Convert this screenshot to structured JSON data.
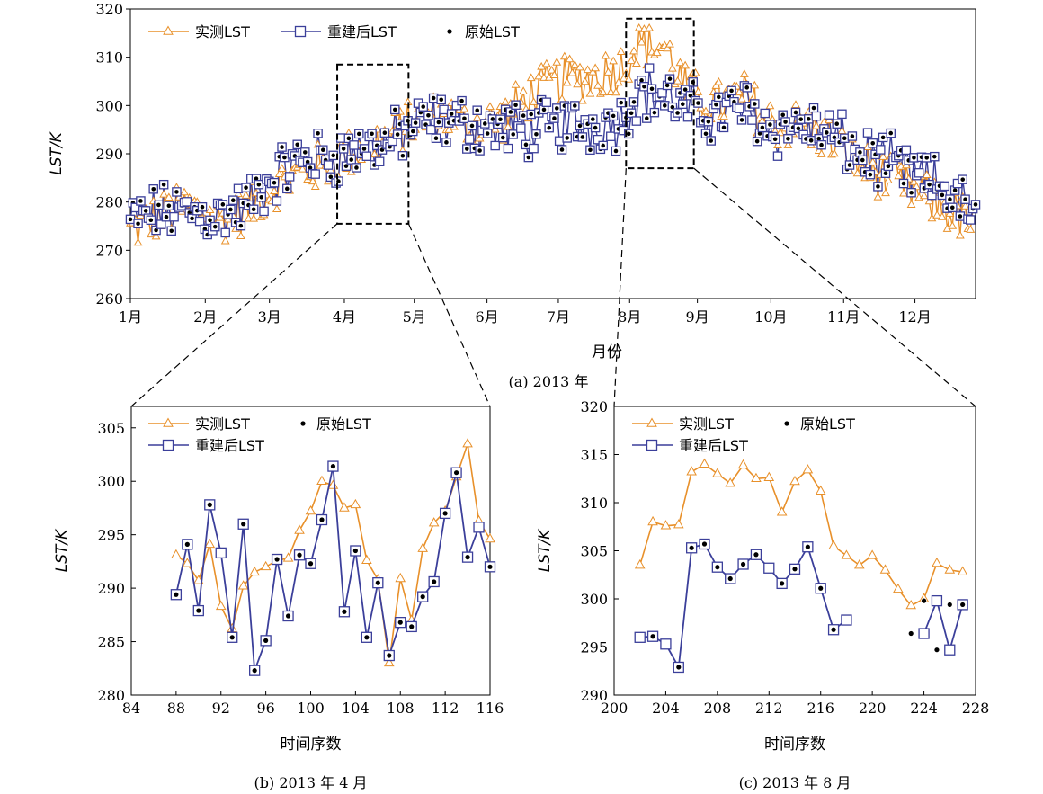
{
  "colors": {
    "measured": "#e8902a",
    "rebuilt": "#3b3f9a",
    "original": "#000000",
    "zoom_box": "#000000"
  },
  "chart_data": [
    {
      "id": "a",
      "type": "line",
      "caption": "(a) 2013 年",
      "xlabel": "月份",
      "ylabel": "LST/K",
      "ylim": [
        260,
        320
      ],
      "yticks": [
        260,
        270,
        280,
        290,
        300,
        310,
        320
      ],
      "xticks": [
        "1月",
        "2月",
        "3月",
        "4月",
        "5月",
        "6月",
        "7月",
        "8月",
        "9月",
        "10月",
        "11月",
        "12月"
      ],
      "xlim_month": [
        1,
        12.85
      ],
      "legend": [
        {
          "key": "measured",
          "label": "实测LST"
        },
        {
          "key": "rebuilt",
          "label": "重建后LST"
        },
        {
          "key": "original",
          "label": "原始LST"
        }
      ],
      "zoom_boxes": [
        {
          "x_month": [
            3.9,
            4.9
          ],
          "y": [
            275.5,
            308.5
          ]
        },
        {
          "x_month": [
            7.95,
            8.9
          ],
          "y": [
            287,
            318
          ]
        }
      ],
      "measured_anchors": [
        [
          1.0,
          274
        ],
        [
          1.4,
          277
        ],
        [
          1.8,
          279
        ],
        [
          2.2,
          276
        ],
        [
          2.6,
          278
        ],
        [
          3.0,
          283
        ],
        [
          3.4,
          286
        ],
        [
          3.8,
          288
        ],
        [
          4.2,
          291
        ],
        [
          4.6,
          293
        ],
        [
          5.0,
          297
        ],
        [
          5.4,
          298
        ],
        [
          5.8,
          296
        ],
        [
          6.2,
          297
        ],
        [
          6.6,
          302
        ],
        [
          7.0,
          305
        ],
        [
          7.5,
          306
        ],
        [
          7.9,
          308
        ],
        [
          8.1,
          313
        ],
        [
          8.5,
          312
        ],
        [
          8.8,
          303
        ],
        [
          9.2,
          300
        ],
        [
          9.6,
          302
        ],
        [
          10.0,
          296
        ],
        [
          10.4,
          296
        ],
        [
          10.8,
          293
        ],
        [
          11.2,
          288
        ],
        [
          11.6,
          285
        ],
        [
          12.0,
          282
        ],
        [
          12.4,
          279
        ],
        [
          12.85,
          275
        ]
      ],
      "rebuilt_anchors": [
        [
          1.0,
          276
        ],
        [
          1.4,
          278
        ],
        [
          1.8,
          278
        ],
        [
          2.2,
          277
        ],
        [
          2.6,
          279
        ],
        [
          3.0,
          285
        ],
        [
          3.4,
          289
        ],
        [
          3.8,
          289
        ],
        [
          4.2,
          291
        ],
        [
          4.6,
          292
        ],
        [
          5.0,
          296
        ],
        [
          5.4,
          297
        ],
        [
          5.8,
          296
        ],
        [
          6.2,
          295
        ],
        [
          6.6,
          295
        ],
        [
          7.0,
          296
        ],
        [
          7.5,
          296
        ],
        [
          7.9,
          297
        ],
        [
          8.1,
          303
        ],
        [
          8.5,
          302
        ],
        [
          8.8,
          299
        ],
        [
          9.2,
          298
        ],
        [
          9.6,
          300
        ],
        [
          10.0,
          295
        ],
        [
          10.4,
          296
        ],
        [
          10.8,
          294
        ],
        [
          11.2,
          290
        ],
        [
          11.6,
          288
        ],
        [
          12.0,
          285
        ],
        [
          12.4,
          283
        ],
        [
          12.85,
          277
        ]
      ]
    },
    {
      "id": "b",
      "type": "line",
      "caption": "(b) 2013 年 4 月",
      "xlabel": "时间序数",
      "ylabel": "LST/K",
      "xlim": [
        84,
        116
      ],
      "ylim": [
        280,
        307
      ],
      "xticks": [
        84,
        88,
        92,
        96,
        100,
        104,
        108,
        112,
        116
      ],
      "yticks": [
        280,
        285,
        290,
        295,
        300,
        305
      ],
      "legend": [
        {
          "key": "measured",
          "label": "实测LST"
        },
        {
          "key": "original",
          "label": "原始LST"
        },
        {
          "key": "rebuilt",
          "label": "重建后LST"
        }
      ],
      "series": [
        {
          "name": "实测LST",
          "key": "measured",
          "x": [
            88,
            89,
            90,
            91,
            92,
            93,
            94,
            95,
            96,
            97,
            98,
            99,
            100,
            101,
            102,
            103,
            104,
            105,
            106,
            107,
            108,
            109,
            110,
            111,
            112,
            113,
            114,
            115,
            116
          ],
          "y": [
            293.1,
            292.3,
            290.7,
            294.1,
            288.3,
            286.2,
            290.2,
            291.5,
            292.0,
            292.6,
            292.8,
            295.4,
            297.2,
            300.0,
            299.6,
            297.5,
            297.8,
            292.6,
            290.8,
            283.0,
            290.9,
            287.0,
            293.7,
            296.1,
            297.2,
            300.4,
            303.5,
            296.3,
            294.6
          ]
        },
        {
          "name": "重建后LST",
          "key": "rebuilt",
          "x": [
            88,
            89,
            90,
            91,
            92,
            93,
            94,
            95,
            96,
            97,
            98,
            99,
            100,
            101,
            102,
            103,
            104,
            105,
            106,
            107,
            108,
            109,
            110,
            111,
            112,
            113,
            114,
            115,
            116
          ],
          "y": [
            289.4,
            294.1,
            287.9,
            297.8,
            293.3,
            285.4,
            296.0,
            282.3,
            285.1,
            292.7,
            287.4,
            293.1,
            292.3,
            296.4,
            301.4,
            287.8,
            293.5,
            285.4,
            290.5,
            283.7,
            286.8,
            286.4,
            289.2,
            290.6,
            297.0,
            300.8,
            292.9,
            295.7,
            292.0
          ]
        },
        {
          "name": "原始LST",
          "key": "original",
          "x": [
            88,
            89,
            90,
            91,
            93,
            94,
            95,
            96,
            97,
            98,
            99,
            100,
            101,
            102,
            103,
            104,
            105,
            106,
            107,
            108,
            109,
            110,
            111,
            112,
            113,
            114,
            116
          ],
          "y": [
            289.4,
            294.1,
            287.9,
            297.8,
            285.4,
            296.0,
            282.3,
            285.1,
            292.7,
            287.4,
            293.1,
            292.3,
            296.4,
            301.4,
            287.8,
            293.5,
            285.4,
            290.5,
            283.7,
            286.8,
            286.4,
            289.2,
            290.6,
            297.0,
            300.8,
            292.9,
            292.0
          ]
        }
      ]
    },
    {
      "id": "c",
      "type": "line",
      "caption": "(c) 2013 年 8 月",
      "xlabel": "时间序数",
      "ylabel": "LST/K",
      "xlim": [
        200,
        228
      ],
      "ylim": [
        290,
        320
      ],
      "xticks": [
        200,
        204,
        208,
        212,
        216,
        220,
        224,
        228
      ],
      "yticks": [
        290,
        295,
        300,
        305,
        310,
        315,
        320
      ],
      "legend": [
        {
          "key": "measured",
          "label": "实测LST"
        },
        {
          "key": "original",
          "label": "原始LST"
        },
        {
          "key": "rebuilt",
          "label": "重建后LST"
        }
      ],
      "series": [
        {
          "name": "实测LST",
          "key": "measured",
          "x": [
            202,
            203,
            204,
            205,
            206,
            207,
            208,
            209,
            210,
            211,
            212,
            213,
            214,
            215,
            216,
            217,
            218,
            219,
            220,
            221,
            222,
            223,
            224,
            225,
            226,
            227
          ],
          "y": [
            303.5,
            308.0,
            307.6,
            307.7,
            313.2,
            314.0,
            313.0,
            312.0,
            313.9,
            312.5,
            312.6,
            309.0,
            312.2,
            313.4,
            311.2,
            305.5,
            304.5,
            303.5,
            304.5,
            303.0,
            301.0,
            299.3,
            300.0,
            303.7,
            303.0,
            302.8
          ]
        },
        {
          "name": "重建后LST",
          "key": "rebuilt",
          "x": [
            202,
            203,
            204,
            205,
            206,
            207,
            208,
            209,
            210,
            211,
            212,
            213,
            214,
            215,
            216,
            217,
            218,
            219,
            220,
            221,
            222,
            223,
            224,
            225,
            226,
            227
          ],
          "y": [
            296.0,
            296.1,
            295.3,
            292.9,
            305.3,
            305.7,
            303.3,
            302.1,
            303.6,
            304.6,
            303.2,
            301.6,
            303.1,
            305.4,
            301.1,
            296.8,
            297.8,
            null,
            null,
            null,
            null,
            null,
            296.4,
            299.8,
            294.7,
            299.4
          ]
        },
        {
          "name": "原始LST",
          "key": "original",
          "x": [
            203,
            205,
            206,
            207,
            208,
            209,
            210,
            211,
            213,
            214,
            215,
            216,
            217,
            223,
            224,
            225,
            226,
            227
          ],
          "y": [
            296.1,
            292.9,
            305.3,
            305.7,
            303.3,
            302.1,
            303.6,
            304.6,
            301.6,
            303.1,
            305.4,
            301.1,
            296.8,
            296.4,
            299.8,
            294.7,
            299.4,
            299.4
          ]
        }
      ]
    }
  ]
}
